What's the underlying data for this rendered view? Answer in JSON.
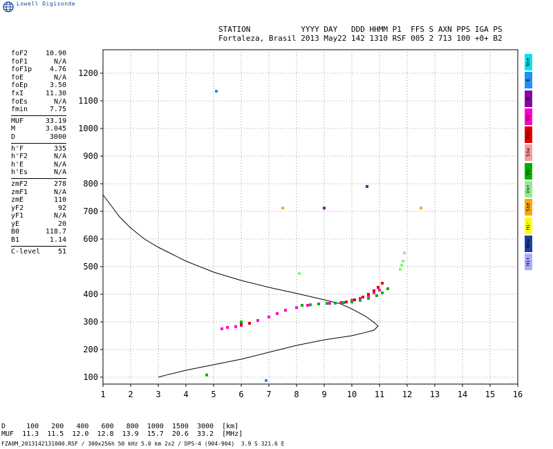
{
  "logo": {
    "text": "Lowell Digisonde",
    "icon": "globe-icon",
    "color": "#1a3fa0"
  },
  "header": {
    "line1": "STATION           YYYY DAY   DDD HHMM P1  FFS S AXN PPS IGA PS",
    "line2": "Fortaleza, Brasil 2013 May22 142 1310 RSF 005 2 713 100 +0+ B2"
  },
  "params": [
    [
      [
        "foF2",
        "10.90"
      ],
      [
        "foF1",
        "N/A"
      ],
      [
        "foF1p",
        "4.76"
      ],
      [
        "foE",
        "N/A"
      ],
      [
        "foEp",
        "3.50"
      ],
      [
        "fxI",
        "11.30"
      ],
      [
        "foEs",
        "N/A"
      ],
      [
        "fmin",
        "7.75"
      ]
    ],
    [
      [
        "MUF",
        "33.19"
      ],
      [
        "M",
        "3.045"
      ],
      [
        "D",
        "3000"
      ]
    ],
    [
      [
        "h'F",
        "335"
      ],
      [
        "h'F2",
        "N/A"
      ],
      [
        "h'E",
        "N/A"
      ],
      [
        "h'Es",
        "N/A"
      ]
    ],
    [
      [
        "zmF2",
        "278"
      ],
      [
        "zmF1",
        "N/A"
      ],
      [
        "zmE",
        "110"
      ],
      [
        "yF2",
        "92"
      ],
      [
        "yF1",
        "N/A"
      ],
      [
        "yE",
        "20"
      ],
      [
        "B0",
        "118.7"
      ],
      [
        "B1",
        "1.14"
      ]
    ],
    [
      [
        "C-level",
        "51"
      ]
    ]
  ],
  "legend": [
    {
      "label": "Nne",
      "color": "#00e5ee"
    },
    {
      "label": "E",
      "color": "#1e90ff"
    },
    {
      "label": "W",
      "color": "#8b00a8"
    },
    {
      "label": "Vo-",
      "color": "#ff00c8"
    },
    {
      "label": "Vo+",
      "color": "#e00000"
    },
    {
      "label": "Ssw",
      "color": "#ff9a9a"
    },
    {
      "label": "Vx-",
      "color": "#00b000"
    },
    {
      "label": "Vx+",
      "color": "#90ee90"
    },
    {
      "label": "Sse",
      "color": "#ffa500"
    },
    {
      "label": "Hi-",
      "color": "#ffff00"
    },
    {
      "label": "Nnw",
      "color": "#1c3fa0"
    },
    {
      "label": "Hi+",
      "color": "#aaaaff"
    }
  ],
  "chart_data": {
    "type": "scatter",
    "xlabel": "",
    "ylabel": "",
    "xlim": [
      1,
      16
    ],
    "ylim": [
      75,
      1285
    ],
    "xticks": [
      1,
      2,
      3,
      4,
      5,
      6,
      7,
      8,
      9,
      10,
      11,
      12,
      13,
      14,
      15,
      16
    ],
    "yticks": [
      100,
      200,
      300,
      400,
      500,
      600,
      700,
      800,
      900,
      1000,
      1100,
      1200
    ],
    "grid": true,
    "profile_curve": {
      "name": "",
      "color": "#000000",
      "x": [
        1.0,
        1.3,
        1.6,
        2.0,
        2.5,
        3.0,
        3.5,
        4.0,
        5.0,
        6.0,
        7.0,
        8.0,
        9.0,
        9.6,
        10.0,
        10.5,
        10.8,
        10.95,
        10.8,
        10.5,
        10.0,
        9.0,
        8.0,
        7.0,
        6.0,
        5.0,
        4.0,
        3.6,
        3.3,
        3.0
      ],
      "y": [
        760,
        720,
        680,
        640,
        600,
        570,
        545,
        520,
        480,
        450,
        425,
        403,
        380,
        365,
        347,
        320,
        298,
        285,
        270,
        262,
        250,
        235,
        215,
        190,
        165,
        145,
        125,
        115,
        108,
        100
      ]
    },
    "series": [
      {
        "name": "Vo-",
        "color": "#ff00c8",
        "x": [
          5.3,
          5.5,
          5.8,
          6.0,
          6.3,
          6.6,
          7.0,
          7.3,
          7.6,
          8.0,
          8.4,
          8.8,
          9.2,
          9.6,
          10.0,
          10.3,
          10.6,
          10.8,
          11.0
        ],
        "y": [
          275,
          280,
          283,
          287,
          295,
          305,
          318,
          330,
          342,
          352,
          360,
          365,
          367,
          370,
          378,
          385,
          395,
          405,
          415
        ]
      },
      {
        "name": "Vo+",
        "color": "#e00000",
        "x": [
          6.0,
          6.3,
          9.8,
          10.1,
          10.4,
          10.6,
          10.8,
          10.95,
          11.1
        ],
        "y": [
          290,
          295,
          372,
          380,
          390,
          400,
          413,
          425,
          440
        ]
      },
      {
        "name": "Vx-",
        "color": "#00b000",
        "x": [
          6.0,
          8.2,
          8.5,
          8.8,
          9.1,
          9.4,
          9.7,
          10.0,
          10.3,
          10.6,
          10.9,
          11.1,
          11.3,
          4.75
        ],
        "y": [
          300,
          360,
          362,
          365,
          367,
          368,
          370,
          372,
          378,
          385,
          395,
          405,
          420,
          108
        ]
      },
      {
        "name": "Vx+",
        "color": "#90ee90",
        "x": [
          11.75,
          11.8,
          11.85,
          11.9,
          8.1
        ],
        "y": [
          490,
          505,
          520,
          550,
          475
        ]
      },
      {
        "name": "Sse",
        "color": "#ffa500",
        "x": [
          7.5,
          12.5
        ],
        "y": [
          712,
          712
        ]
      },
      {
        "name": "W",
        "color": "#8b00a8",
        "x": [
          10.55,
          9.0
        ],
        "y": [
          790,
          712
        ]
      },
      {
        "name": "E",
        "color": "#1e90ff",
        "x": [
          5.1,
          6.9
        ],
        "y": [
          1135,
          88
        ]
      }
    ]
  },
  "muf_table": {
    "line1": "D     100   200   400   600   800  1000  1500  3000  [km]",
    "line2": "MUF  11.3  11.5  12.0  12.8  13.9  15.7  20.6  33.2  [MHz]"
  },
  "footer": "FZA0M_2013142131000.RSF / 300x256h 50 kHz 5.0 km 2x2 / DPS-4 (904-904)  3.9 S 321.6 E"
}
